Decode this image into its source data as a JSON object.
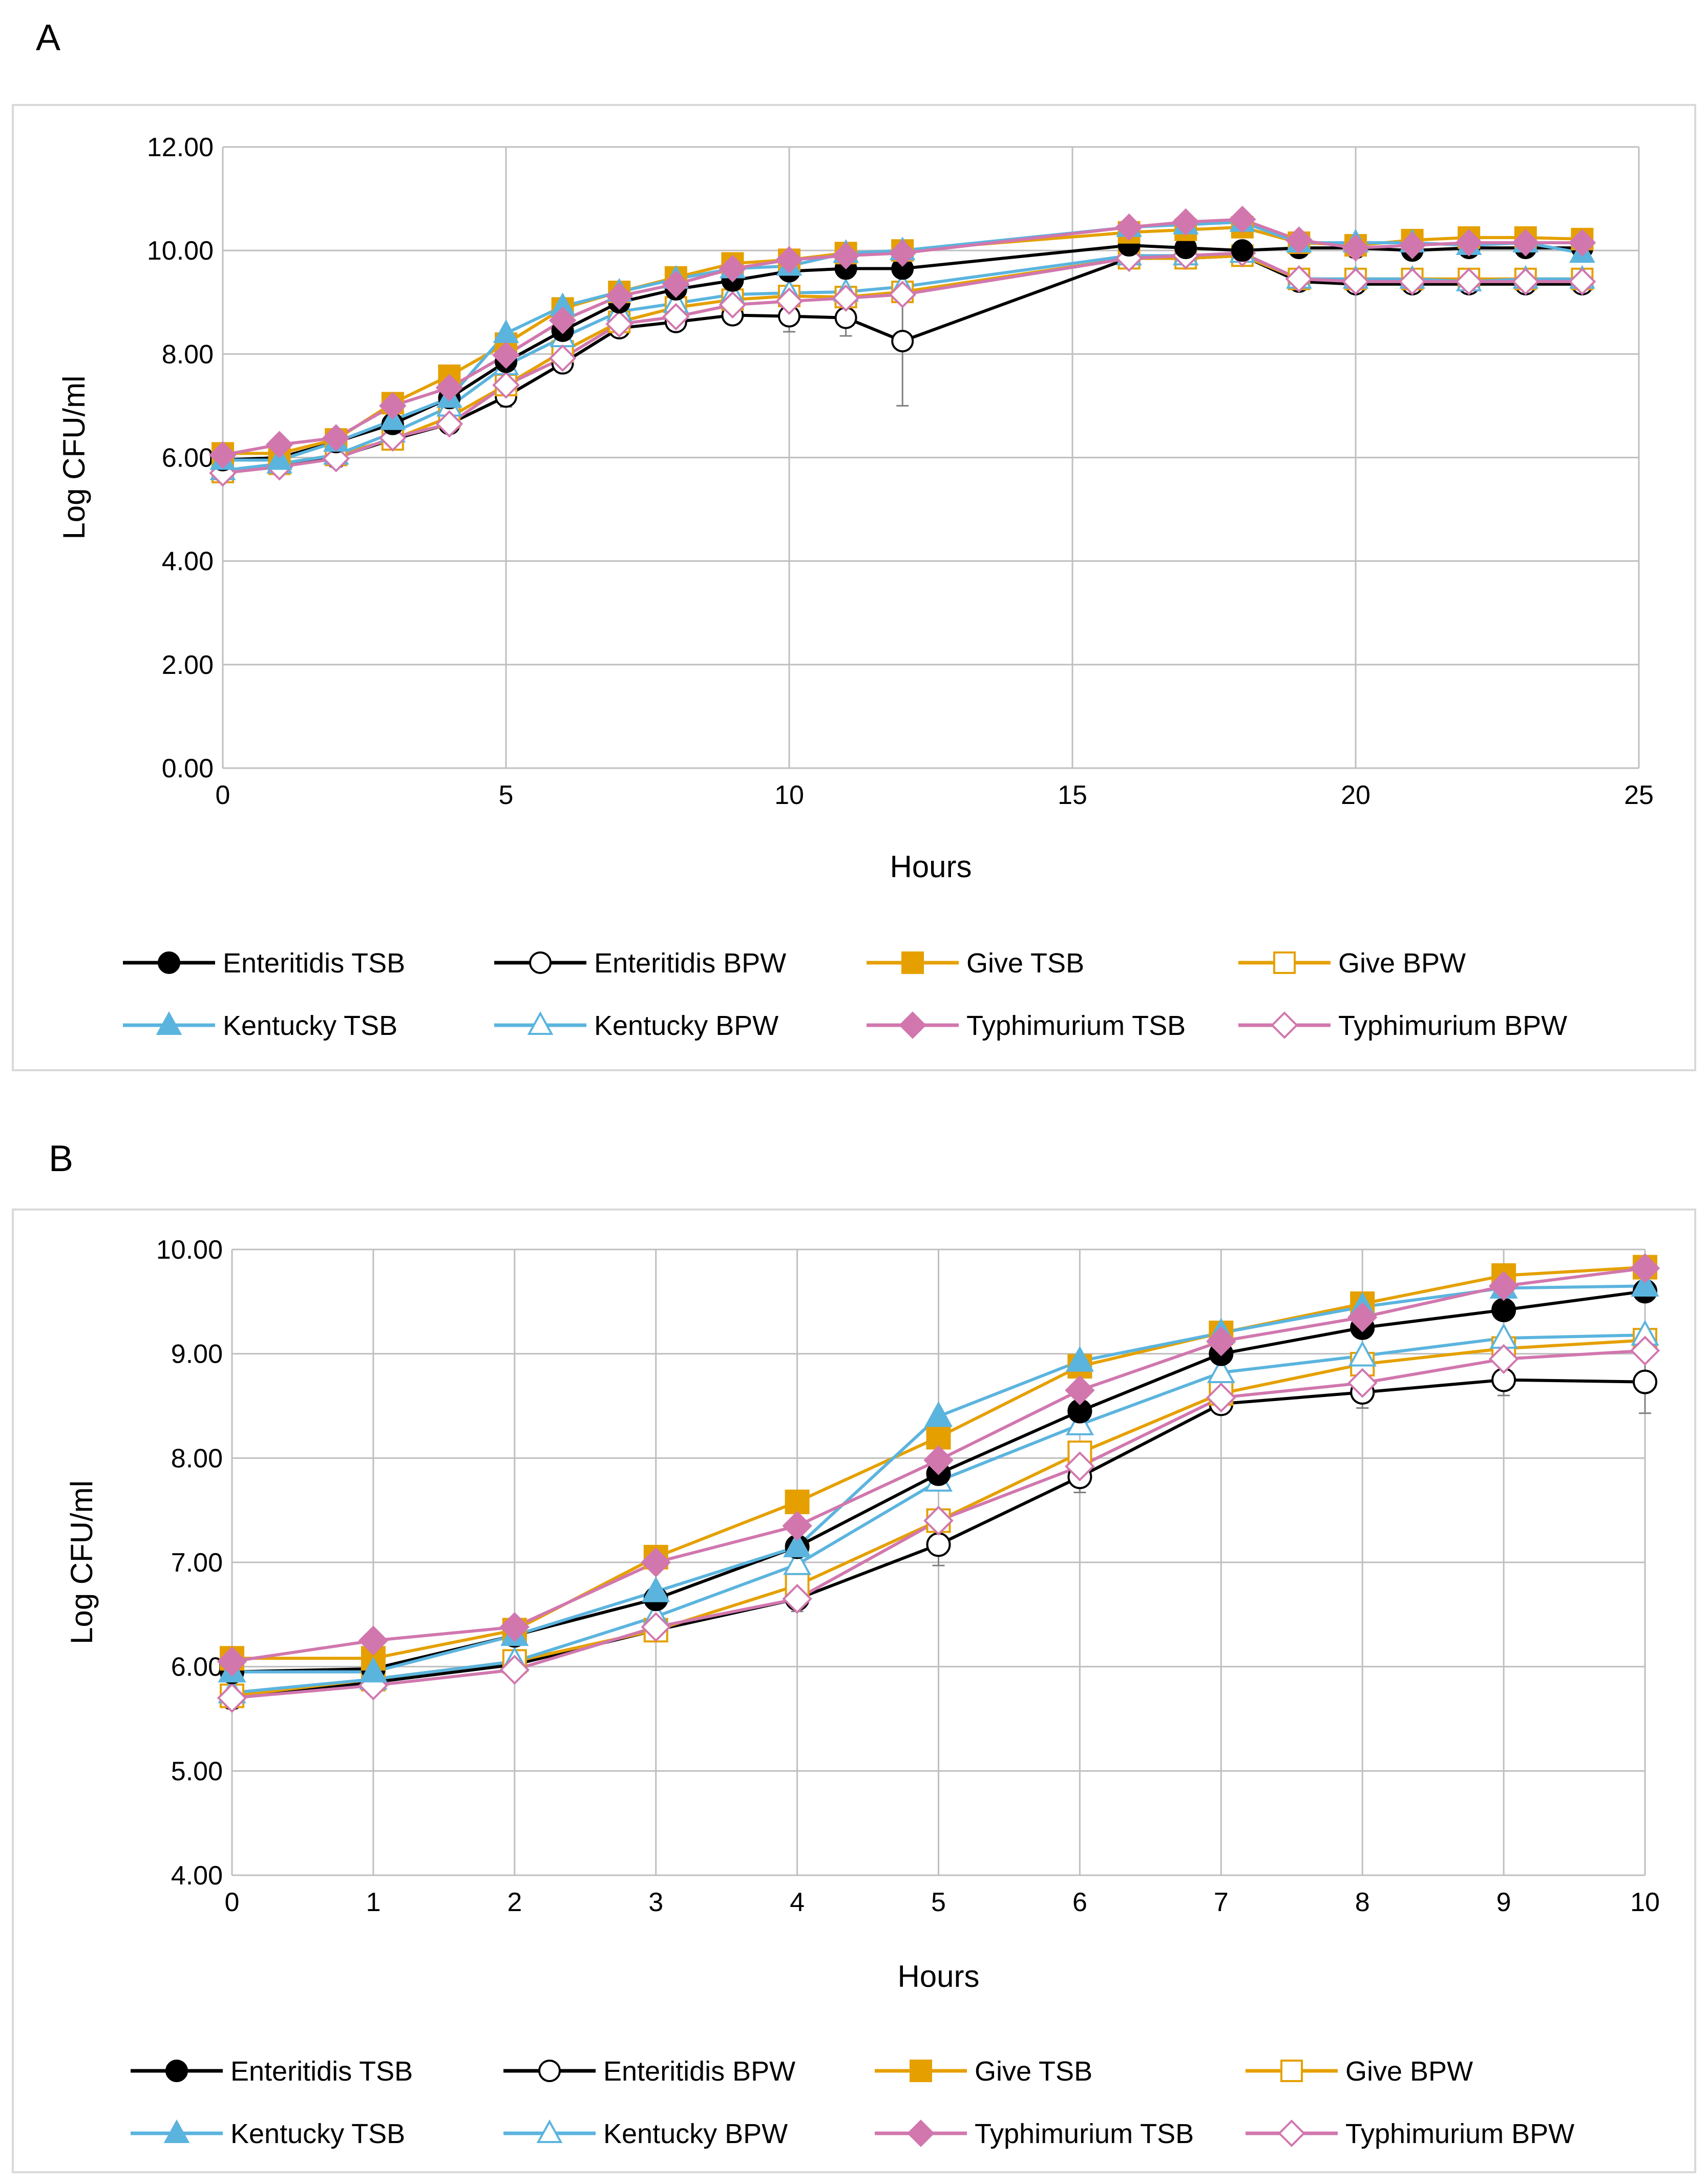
{
  "chart_data": [
    {
      "panel": "A",
      "type": "line",
      "xlabel": "Hours",
      "ylabel": "Log CFU/ml",
      "xlim": [
        0,
        25
      ],
      "ylim": [
        0,
        12
      ],
      "x_ticks": [
        "0",
        "5",
        "10",
        "15",
        "20",
        "25"
      ],
      "y_ticks": [
        "0.00",
        "2.00",
        "4.00",
        "6.00",
        "8.00",
        "10.00",
        "12.00"
      ],
      "x": [
        0,
        1,
        2,
        3,
        4,
        5,
        6,
        7,
        8,
        9,
        10,
        11,
        12,
        16,
        17,
        18,
        19,
        20,
        21,
        22,
        23,
        24
      ],
      "grid": true,
      "legend_position": "bottom",
      "series": [
        {
          "name": "Enteritidis TSB",
          "color": "#000000",
          "marker": "circle",
          "filled": true,
          "values": [
            5.95,
            6.0,
            6.3,
            6.65,
            7.15,
            7.85,
            8.45,
            9.0,
            9.25,
            9.42,
            9.6,
            9.65,
            9.65,
            10.1,
            10.05,
            10.0,
            10.05,
            10.05,
            10.0,
            10.05,
            10.05,
            10.05
          ]
        },
        {
          "name": "Enteritidis BPW",
          "color": "#000000",
          "marker": "circle",
          "filled": false,
          "values": [
            5.72,
            5.85,
            6.0,
            6.35,
            6.65,
            7.18,
            7.82,
            8.5,
            8.62,
            8.75,
            8.73,
            8.7,
            8.25,
            9.85,
            9.85,
            9.9,
            9.4,
            9.35,
            9.35,
            9.35,
            9.35,
            9.35
          ],
          "error": [
            0.1,
            0.05,
            0.05,
            0.08,
            0.12,
            0.2,
            0.15,
            0.1,
            0.15,
            0.15,
            0.3,
            0.35,
            1.25,
            0.2,
            0.15,
            0.1,
            0.1,
            0.1,
            0.1,
            0.1,
            0.1,
            0.1
          ]
        },
        {
          "name": "Give TSB",
          "color": "#E5A000",
          "marker": "square",
          "filled": true,
          "values": [
            6.08,
            6.08,
            6.35,
            7.05,
            7.58,
            8.2,
            8.88,
            9.2,
            9.48,
            9.75,
            9.82,
            9.95,
            10.0,
            10.35,
            10.4,
            10.45,
            10.15,
            10.1,
            10.2,
            10.25,
            10.25,
            10.22
          ]
        },
        {
          "name": "Give BPW",
          "color": "#E5A000",
          "marker": "square",
          "filled": false,
          "values": [
            5.72,
            5.88,
            6.05,
            6.35,
            6.78,
            7.4,
            8.05,
            8.62,
            8.9,
            9.05,
            9.12,
            9.1,
            9.2,
            9.85,
            9.85,
            9.9,
            9.45,
            9.45,
            9.45,
            9.45,
            9.45,
            9.45
          ]
        },
        {
          "name": "Kentucky TSB",
          "color": "#5BB4DE",
          "marker": "triangle",
          "filled": true,
          "values": [
            5.95,
            5.95,
            6.3,
            6.72,
            7.15,
            8.4,
            8.92,
            9.2,
            9.45,
            9.65,
            9.7,
            9.95,
            10.0,
            10.45,
            10.5,
            10.55,
            10.15,
            10.15,
            10.15,
            10.1,
            10.15,
            9.95
          ]
        },
        {
          "name": "Kentucky BPW",
          "color": "#5BB4DE",
          "marker": "triangle",
          "filled": false,
          "values": [
            5.75,
            5.88,
            6.05,
            6.48,
            6.98,
            7.78,
            8.32,
            8.82,
            8.98,
            9.15,
            9.18,
            9.2,
            9.3,
            9.9,
            9.9,
            9.95,
            9.45,
            9.45,
            9.45,
            9.4,
            9.45,
            9.45
          ]
        },
        {
          "name": "Typhimurium TSB",
          "color": "#D177AE",
          "marker": "diamond",
          "filled": true,
          "values": [
            6.05,
            6.25,
            6.38,
            7.0,
            7.35,
            7.98,
            8.65,
            9.12,
            9.35,
            9.65,
            9.82,
            9.9,
            9.95,
            10.45,
            10.55,
            10.6,
            10.2,
            10.05,
            10.1,
            10.15,
            10.15,
            10.15
          ]
        },
        {
          "name": "Typhimurium BPW",
          "color": "#D177AE",
          "marker": "diamond",
          "filled": false,
          "values": [
            5.7,
            5.82,
            5.98,
            6.38,
            6.65,
            7.4,
            7.92,
            8.58,
            8.72,
            8.95,
            9.02,
            9.08,
            9.15,
            9.85,
            9.9,
            9.95,
            9.45,
            9.4,
            9.4,
            9.4,
            9.4,
            9.4
          ]
        }
      ]
    },
    {
      "panel": "B",
      "type": "line",
      "xlabel": "Hours",
      "ylabel": "Log CFU/ml",
      "xlim": [
        0,
        10
      ],
      "ylim": [
        4,
        10
      ],
      "x_ticks": [
        "0",
        "1",
        "2",
        "3",
        "4",
        "5",
        "6",
        "7",
        "8",
        "9",
        "10"
      ],
      "y_ticks": [
        "4.00",
        "5.00",
        "6.00",
        "7.00",
        "8.00",
        "9.00",
        "10.00"
      ],
      "x": [
        0,
        1,
        2,
        3,
        4,
        5,
        6,
        7,
        8,
        9,
        10
      ],
      "grid": true,
      "legend_position": "bottom",
      "series": [
        {
          "name": "Enteritidis TSB",
          "color": "#000000",
          "marker": "circle",
          "filled": true,
          "values": [
            5.95,
            5.98,
            6.3,
            6.65,
            7.15,
            7.85,
            8.45,
            9.0,
            9.25,
            9.42,
            9.6
          ]
        },
        {
          "name": "Enteritidis BPW",
          "color": "#000000",
          "marker": "circle",
          "filled": false,
          "values": [
            5.7,
            5.85,
            6.02,
            6.35,
            6.65,
            7.17,
            7.82,
            8.52,
            8.63,
            8.75,
            8.73
          ],
          "error": [
            0.1,
            0.05,
            0.05,
            0.08,
            0.12,
            0.2,
            0.15,
            0.1,
            0.15,
            0.15,
            0.3
          ]
        },
        {
          "name": "Give TSB",
          "color": "#E5A000",
          "marker": "square",
          "filled": true,
          "values": [
            6.08,
            6.08,
            6.35,
            7.05,
            7.58,
            8.2,
            8.88,
            9.2,
            9.48,
            9.75,
            9.83
          ]
        },
        {
          "name": "Give BPW",
          "color": "#E5A000",
          "marker": "square",
          "filled": false,
          "values": [
            5.72,
            5.88,
            6.05,
            6.35,
            6.78,
            7.4,
            8.05,
            8.62,
            8.9,
            9.05,
            9.13
          ]
        },
        {
          "name": "Kentucky TSB",
          "color": "#5BB4DE",
          "marker": "triangle",
          "filled": true,
          "values": [
            5.95,
            5.95,
            6.3,
            6.72,
            7.15,
            8.4,
            8.93,
            9.2,
            9.45,
            9.63,
            9.65
          ]
        },
        {
          "name": "Kentucky BPW",
          "color": "#5BB4DE",
          "marker": "triangle",
          "filled": false,
          "values": [
            5.75,
            5.88,
            6.05,
            6.48,
            6.98,
            7.78,
            8.32,
            8.82,
            8.98,
            9.15,
            9.18
          ]
        },
        {
          "name": "Typhimurium TSB",
          "color": "#D177AE",
          "marker": "diamond",
          "filled": true,
          "values": [
            6.05,
            6.25,
            6.38,
            7.0,
            7.35,
            7.98,
            8.65,
            9.12,
            9.35,
            9.65,
            9.82
          ]
        },
        {
          "name": "Typhimurium BPW",
          "color": "#D177AE",
          "marker": "diamond",
          "filled": false,
          "values": [
            5.7,
            5.82,
            5.97,
            6.38,
            6.65,
            7.4,
            7.92,
            8.58,
            8.72,
            8.95,
            9.03
          ]
        }
      ]
    }
  ]
}
